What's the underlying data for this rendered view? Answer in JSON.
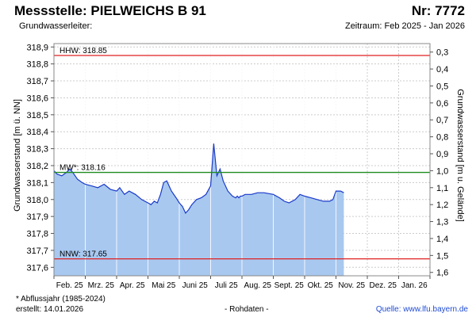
{
  "header": {
    "station": "Messstelle: PIELWEICHS B 91",
    "number": "Nr: 7772",
    "aquifer": "Grundwasserleiter:",
    "period": "Zeitraum: Feb 2025 - Jan 2026"
  },
  "footer": {
    "note": "* Abflussjahr (1985-2024)",
    "created": "erstellt:  14.01.2026",
    "rawdata": "- Rohdaten -",
    "source_label": "Quelle:",
    "source_url": "www.lfu.bayern.de"
  },
  "colors": {
    "area": "#a8c8f0",
    "line": "#1a3ac8",
    "hhw": "#e02020",
    "nnw": "#e02020",
    "mw": "#1f8c1f",
    "grid": "#cccccc"
  },
  "chart_data": {
    "type": "area",
    "ylabel": "Grundwasserstand [m ü. NN]",
    "y2label": "Grundwasserstand [m u. Gelände]",
    "ylim": [
      317.55,
      318.92
    ],
    "y2lim": [
      0.25,
      1.62
    ],
    "yticks": [
      "318,9",
      "318,8",
      "318,7",
      "318,6",
      "318,5",
      "318,4",
      "318,3",
      "318,2",
      "318,1",
      "318,0",
      "317,9",
      "317,8",
      "317,7",
      "317,6"
    ],
    "y2ticks": [
      "0,3",
      "0,4",
      "0,5",
      "0,6",
      "0,7",
      "0,8",
      "0,9",
      "1,0",
      "1,1",
      "1,2",
      "1,3",
      "1,4",
      "1,5",
      "1,6"
    ],
    "xlabels": [
      "Feb. 25",
      "Mrz. 25",
      "Apr. 25",
      "Mai 25",
      "Juni 25",
      "Juli 25",
      "Aug. 25",
      "Sept. 25",
      "Okt. 25",
      "Nov. 25",
      "Dez. 25",
      "Jan. 26"
    ],
    "grid": true,
    "reference_lines": [
      {
        "label": "HHW: 318.85",
        "value": 318.85,
        "color": "#e02020"
      },
      {
        "label": "MW*: 318.16",
        "value": 318.16,
        "color": "#1f8c1f"
      },
      {
        "label": "NNW: 317.65",
        "value": 317.65,
        "color": "#e02020"
      }
    ],
    "series": [
      {
        "x": [
          0,
          0.1,
          0.25,
          0.4,
          0.5,
          0.6,
          0.75,
          0.9,
          1.0,
          1.2,
          1.4,
          1.6,
          1.8,
          2.0,
          2.1,
          2.25,
          2.4,
          2.6,
          2.8,
          3.0,
          3.1,
          3.2,
          3.3,
          3.4,
          3.5,
          3.6,
          3.75,
          3.9,
          4.0,
          4.1,
          4.2,
          4.3,
          4.4,
          4.55,
          4.7,
          4.85,
          5.0,
          5.1,
          5.2,
          5.3,
          5.4,
          5.55,
          5.7,
          5.8,
          5.85,
          5.9,
          5.95,
          6.0,
          6.1,
          6.3,
          6.5,
          6.7,
          7.0,
          7.2,
          7.35,
          7.5,
          7.7,
          7.85,
          8.0,
          8.2,
          8.4,
          8.6,
          8.8,
          8.9,
          9.0,
          9.15,
          9.25
        ],
        "y": [
          318.17,
          318.15,
          318.14,
          318.16,
          318.18,
          318.16,
          318.12,
          318.1,
          318.09,
          318.08,
          318.07,
          318.09,
          318.06,
          318.05,
          318.07,
          318.03,
          318.05,
          318.03,
          318.0,
          317.98,
          317.97,
          317.99,
          317.98,
          318.03,
          318.1,
          318.11,
          318.05,
          318.01,
          317.98,
          317.96,
          317.92,
          317.94,
          317.97,
          318.0,
          318.01,
          318.03,
          318.08,
          318.33,
          318.14,
          318.18,
          318.11,
          318.05,
          318.02,
          318.01,
          318.02,
          318.01,
          318.02,
          318.02,
          318.03,
          318.03,
          318.04,
          318.04,
          318.03,
          318.01,
          317.99,
          317.98,
          318.0,
          318.03,
          318.02,
          318.01,
          318.0,
          317.99,
          317.99,
          318.0,
          318.05,
          318.05,
          318.04
        ]
      }
    ]
  }
}
